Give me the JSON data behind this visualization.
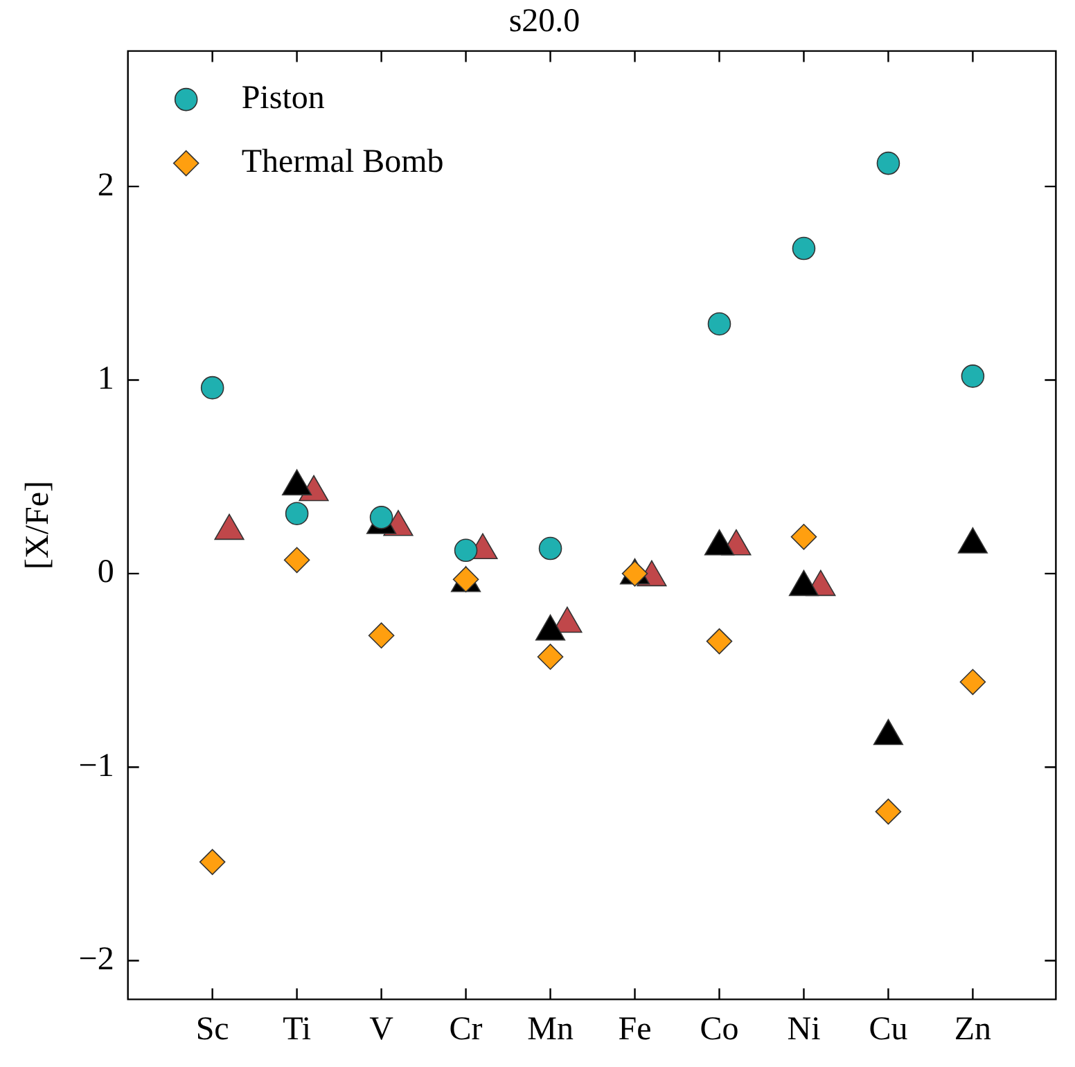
{
  "chart_data": {
    "type": "scatter",
    "title": "s20.0",
    "ylabel": "[X/Fe]",
    "categories": [
      "Sc",
      "Ti",
      "V",
      "Cr",
      "Mn",
      "Fe",
      "Co",
      "Ni",
      "Cu",
      "Zn"
    ],
    "series": [
      {
        "name": "Piston",
        "color": "#1fb0b0",
        "marker": "circle",
        "values": [
          0.96,
          0.31,
          0.29,
          0.12,
          0.13,
          null,
          1.29,
          1.68,
          2.12,
          1.02
        ]
      },
      {
        "name": "Thermal Bomb",
        "color": "#ff9f0f",
        "marker": "diamond",
        "values": [
          -1.49,
          0.07,
          -0.32,
          -0.03,
          -0.43,
          0.0,
          -0.35,
          0.19,
          -1.23,
          -0.56
        ]
      },
      {
        "color": "#000000",
        "marker": "triangle",
        "values": [
          null,
          0.45,
          0.25,
          -0.05,
          -0.3,
          -0.01,
          0.14,
          -0.07,
          -0.84,
          0.15
        ]
      },
      {
        "color": "#c0474a",
        "marker": "triangle",
        "values": [
          0.22,
          0.42,
          0.24,
          0.12,
          -0.26,
          -0.02,
          0.14,
          -0.07,
          null,
          null
        ]
      }
    ],
    "ylim": [
      -2.2,
      2.7
    ],
    "yticks": [
      {
        "value": -2,
        "label": "−2"
      },
      {
        "value": -1,
        "label": "−1"
      },
      0,
      1,
      2
    ],
    "legend": "top left",
    "grid": false
  }
}
